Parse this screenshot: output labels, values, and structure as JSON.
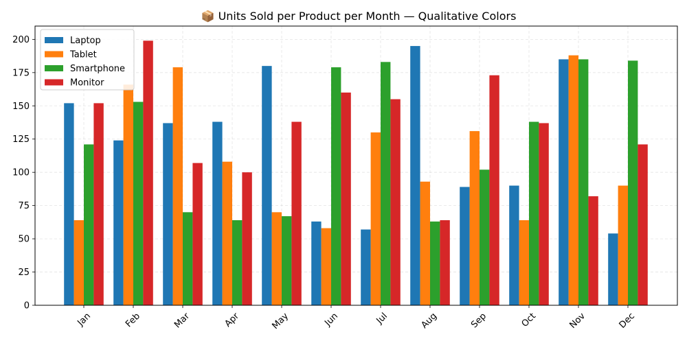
{
  "chart_data": {
    "type": "bar",
    "title": "📦 Units Sold per Product per Month — Qualitative Colors",
    "xlabel": "",
    "ylabel": "",
    "ylim": [
      0,
      210
    ],
    "yticks": [
      0,
      25,
      50,
      75,
      100,
      125,
      150,
      175,
      200
    ],
    "grid": true,
    "legend_position": "top-left",
    "categories": [
      "Jan",
      "Feb",
      "Mar",
      "Apr",
      "May",
      "Jun",
      "Jul",
      "Aug",
      "Sep",
      "Oct",
      "Nov",
      "Dec"
    ],
    "series": [
      {
        "name": "Laptop",
        "color": "#1f77b4",
        "values": [
          152,
          124,
          137,
          138,
          180,
          63,
          57,
          195,
          89,
          90,
          185,
          54
        ]
      },
      {
        "name": "Tablet",
        "color": "#ff7f0e",
        "values": [
          64,
          166,
          179,
          108,
          70,
          58,
          130,
          93,
          131,
          64,
          188,
          90
        ]
      },
      {
        "name": "Smartphone",
        "color": "#2ca02c",
        "values": [
          121,
          153,
          70,
          64,
          67,
          179,
          183,
          63,
          102,
          138,
          185,
          184
        ]
      },
      {
        "name": "Monitor",
        "color": "#d62728",
        "values": [
          152,
          199,
          107,
          100,
          138,
          160,
          155,
          64,
          173,
          137,
          82,
          121
        ]
      }
    ]
  }
}
